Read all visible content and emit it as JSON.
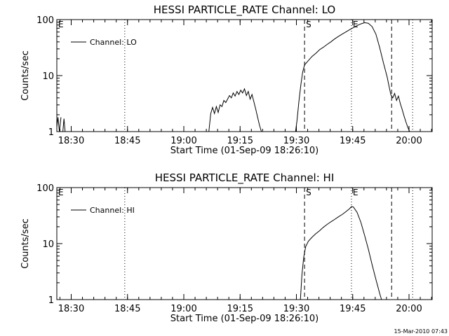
{
  "footer": {
    "timestamp": "15-Mar-2010 07:43"
  },
  "chart_data": [
    {
      "type": "line",
      "title": "HESSI PARTICLE_RATE Channel: LO",
      "xlabel": "Start Time (01-Sep-09 18:26:10)",
      "ylabel": "Counts/sec",
      "yscale": "log",
      "ylim": [
        1,
        100
      ],
      "xlim_minutes": [
        0,
        100
      ],
      "xtick_labels": [
        "18:30",
        "18:45",
        "19:00",
        "19:15",
        "19:30",
        "19:45",
        "20:00"
      ],
      "xtick_minutes": [
        3.83,
        18.83,
        33.83,
        48.83,
        63.83,
        78.83,
        93.83
      ],
      "ytick_labels": [
        "1",
        "10",
        "100"
      ],
      "ytick_values": [
        1,
        10,
        100
      ],
      "legend": {
        "label": "Channel: LO",
        "position": "top-left"
      },
      "markers": [
        {
          "text": "E",
          "x": 0
        },
        {
          "text": "S",
          "x": 66
        },
        {
          "text": "E",
          "x": 78.5
        }
      ],
      "vlines": [
        {
          "x": 18.1,
          "style": "dotted"
        },
        {
          "x": 66,
          "style": "dashed"
        },
        {
          "x": 78.5,
          "style": "dotted"
        },
        {
          "x": 89.2,
          "style": "dashed"
        },
        {
          "x": 94.8,
          "style": "dotted"
        }
      ],
      "series": [
        {
          "name": "Channel: LO",
          "segments": [
            {
              "x": [
                0,
                0.3,
                0.7,
                1.1
              ],
              "y": [
                1.2,
                1.8,
                1.0,
                1.8
              ]
            },
            {
              "x": [
                1.6,
                1.9,
                2.2
              ],
              "y": [
                1.0,
                1.7,
                1.0
              ]
            },
            {
              "x": [
                40.5,
                41,
                41.5,
                42,
                42.5,
                43,
                43.5,
                44,
                44.5,
                45,
                45.5,
                46,
                46.5,
                47,
                47.5,
                48,
                48.5,
                49,
                49.5,
                50,
                50.5,
                51,
                51.5,
                52,
                52.5,
                53,
                53.5,
                54,
                54.5
              ],
              "y": [
                1.0,
                2.1,
                2.7,
                2.1,
                2.8,
                2.2,
                3.0,
                2.8,
                3.6,
                3.3,
                3.8,
                4.4,
                4.0,
                4.9,
                4.3,
                5.2,
                4.6,
                5.5,
                4.9,
                5.8,
                4.4,
                5.2,
                3.8,
                4.6,
                3.4,
                2.5,
                1.8,
                1.3,
                1.0
              ]
            },
            {
              "x": [
                63.6,
                64,
                64.5,
                65,
                65.5,
                66,
                67,
                68,
                69,
                70,
                71,
                72,
                73,
                74,
                75,
                76,
                77,
                78,
                79,
                80,
                81,
                82,
                83,
                84,
                85,
                86,
                87,
                88,
                88.5,
                89,
                89.5,
                90,
                90.5,
                91,
                91.5,
                92,
                92.5,
                93,
                93.5,
                94
              ],
              "y": [
                1.0,
                1.6,
                3.5,
                6.8,
                11.5,
                15.5,
                18.5,
                22,
                25,
                29,
                32,
                36,
                40,
                45,
                50,
                55,
                60,
                66,
                72,
                78,
                84,
                88,
                86,
                75,
                55,
                32,
                17,
                9.5,
                6.5,
                4.5,
                4.0,
                4.8,
                3.6,
                4.3,
                3.2,
                2.5,
                1.9,
                1.5,
                1.2,
                1.0
              ]
            }
          ]
        }
      ]
    },
    {
      "type": "line",
      "title": "HESSI PARTICLE_RATE Channel: HI",
      "xlabel": "Start Time (01-Sep-09 18:26:10)",
      "ylabel": "Counts/sec",
      "yscale": "log",
      "ylim": [
        1,
        100
      ],
      "xlim_minutes": [
        0,
        100
      ],
      "xtick_labels": [
        "18:30",
        "18:45",
        "19:00",
        "19:15",
        "19:30",
        "19:45",
        "20:00"
      ],
      "xtick_minutes": [
        3.83,
        18.83,
        33.83,
        48.83,
        63.83,
        78.83,
        93.83
      ],
      "ytick_labels": [
        "1",
        "10",
        "100"
      ],
      "ytick_values": [
        1,
        10,
        100
      ],
      "legend": {
        "label": "Channel: HI",
        "position": "top-left"
      },
      "markers": [
        {
          "text": "E",
          "x": 0
        },
        {
          "text": "S",
          "x": 66
        },
        {
          "text": "E",
          "x": 78.5
        }
      ],
      "vlines": [
        {
          "x": 18.1,
          "style": "dotted"
        },
        {
          "x": 66,
          "style": "dashed"
        },
        {
          "x": 78.5,
          "style": "dotted"
        },
        {
          "x": 89.2,
          "style": "dashed"
        },
        {
          "x": 94.8,
          "style": "dotted"
        }
      ],
      "series": [
        {
          "name": "Channel: HI",
          "segments": [
            {
              "x": [
                64.9,
                65.3,
                65.8,
                66.3,
                67,
                68,
                69,
                70,
                71,
                72,
                73,
                74,
                75,
                76,
                77,
                78,
                78.5,
                79,
                80,
                81,
                82,
                83,
                84,
                85,
                86,
                86.5
              ],
              "y": [
                1.0,
                2.8,
                5.8,
                8.8,
                11,
                13,
                15,
                17,
                19.5,
                22,
                24.5,
                27,
                30,
                33,
                37,
                42,
                46,
                45,
                36,
                24,
                14,
                8,
                4.2,
                2.3,
                1.3,
                1.0
              ]
            }
          ]
        }
      ]
    }
  ]
}
